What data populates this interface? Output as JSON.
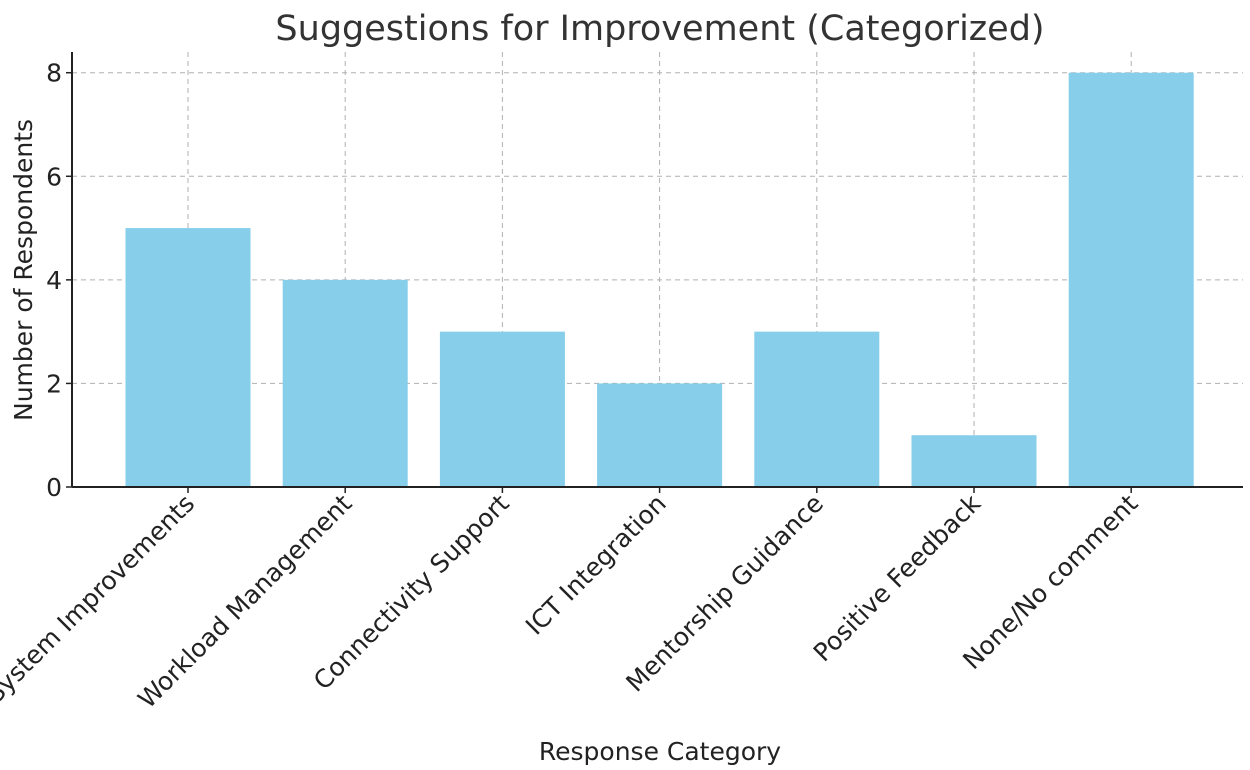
{
  "chart_data": {
    "type": "bar",
    "title": "Suggestions for Improvement (Categorized)",
    "xlabel": "Response Category",
    "ylabel": "Number of Respondents",
    "categories": [
      "System Improvements",
      "Workload Management",
      "Connectivity Support",
      "ICT Integration",
      "Mentorship Guidance",
      "Positive Feedback",
      "None/No comment"
    ],
    "values": [
      5,
      4,
      3,
      2,
      3,
      1,
      8
    ],
    "ylim": [
      0,
      8.4
    ],
    "yticks": [
      0,
      2,
      4,
      6,
      8
    ],
    "grid": true,
    "bar_color": "#87ceeb"
  }
}
